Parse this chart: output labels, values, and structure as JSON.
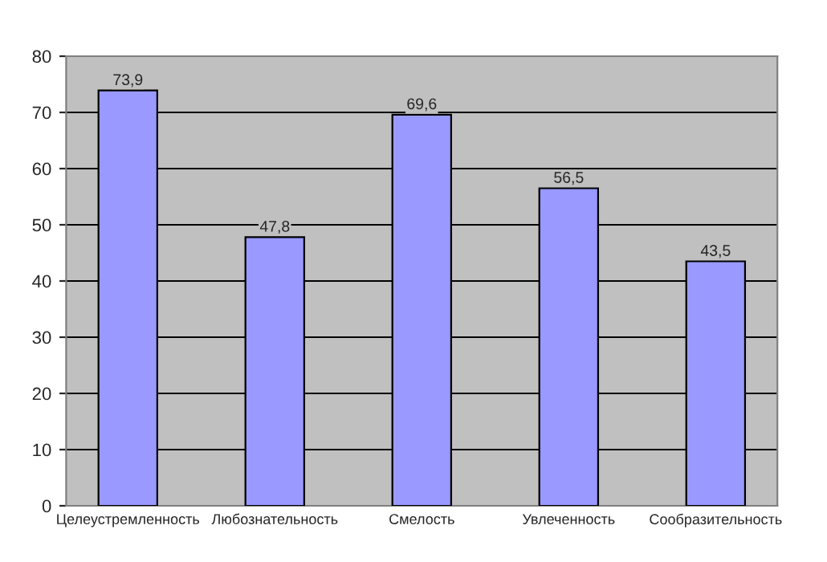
{
  "chart_data": {
    "type": "bar",
    "categories": [
      "Целеустремленность",
      "Любознательность",
      "Смелость",
      "Увлеченность",
      "Сообразительность"
    ],
    "values": [
      73.9,
      47.8,
      69.6,
      56.5,
      43.5
    ],
    "value_labels": [
      "73,9",
      "47,8",
      "69,6",
      "56,5",
      "43,5"
    ],
    "color": "#9999ff",
    "ylim": [
      0,
      80
    ],
    "yticks": [
      0,
      10,
      20,
      30,
      40,
      50,
      60,
      70,
      80
    ],
    "grid": "y",
    "legend": false
  }
}
